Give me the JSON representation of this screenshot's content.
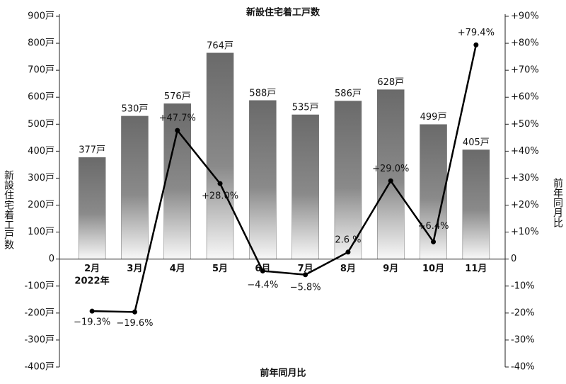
{
  "chart_data": {
    "type": "bar_line",
    "title": "新設住宅着工戸数",
    "x_label": "前年同月比",
    "y_label": "新設住宅着工戸数",
    "y2_label": "前年同月比",
    "annotations": [
      "2022年"
    ],
    "categories": [
      "2月",
      "3月",
      "4月",
      "5月",
      "6月",
      "7月",
      "8月",
      "9月",
      "10月",
      "11月"
    ],
    "series": [
      {
        "name": "新設住宅着工戸数",
        "type": "bar",
        "color": "#6e6e6e",
        "values": [
          377,
          530,
          576,
          764,
          588,
          535,
          586,
          628,
          499,
          405
        ],
        "value_labels": [
          "377戸",
          "530戸",
          "576戸",
          "764戸",
          "588戸",
          "535戸",
          "586戸",
          "628戸",
          "499戸",
          "405戸"
        ]
      },
      {
        "name": "前年同月比",
        "type": "line",
        "axis": "y2",
        "color": "#000000",
        "values": [
          -19.3,
          -19.6,
          47.7,
          28.0,
          -4.4,
          -5.8,
          2.6,
          29.0,
          6.4,
          79.4
        ],
        "value_labels": [
          "−19.3%",
          "−19.6%",
          "+47.7%",
          "+28.0%",
          "−4.4%",
          "−5.8%",
          "2.6 %",
          "+29.0%",
          "+6.4%",
          "+79.4%"
        ]
      }
    ],
    "ylim": [
      -400,
      900
    ],
    "yticks": [
      {
        "value": 900,
        "label": "900戸"
      },
      {
        "value": 800,
        "label": "800戸"
      },
      {
        "value": 700,
        "label": "700戸"
      },
      {
        "value": 600,
        "label": "600戸"
      },
      {
        "value": 500,
        "label": "500戸"
      },
      {
        "value": 400,
        "label": "400戸"
      },
      {
        "value": 300,
        "label": "300戸"
      },
      {
        "value": 200,
        "label": "200戸"
      },
      {
        "value": 100,
        "label": "100戸"
      },
      0,
      {
        "value": -100,
        "label": "-100戸"
      },
      {
        "value": -200,
        "label": "-200戸"
      },
      {
        "value": -300,
        "label": "-300戸"
      },
      {
        "value": -400,
        "label": "-400戸"
      }
    ],
    "y2lim": [
      -40,
      90
    ],
    "y2ticks": [
      {
        "value": 90,
        "label": "+90%"
      },
      {
        "value": 80,
        "label": "+80%"
      },
      {
        "value": 70,
        "label": "+70%"
      },
      {
        "value": 60,
        "label": "+60%"
      },
      {
        "value": 50,
        "label": "+50%"
      },
      {
        "value": 40,
        "label": "+40%"
      },
      {
        "value": 30,
        "label": "+30%"
      },
      {
        "value": 20,
        "label": "+20%"
      },
      {
        "value": 10,
        "label": "+10%"
      },
      0,
      {
        "value": -10,
        "label": "-10%"
      },
      {
        "value": -20,
        "label": "-20%"
      },
      {
        "value": -30,
        "label": "-30%"
      },
      {
        "value": -40,
        "label": "-40%"
      }
    ]
  }
}
